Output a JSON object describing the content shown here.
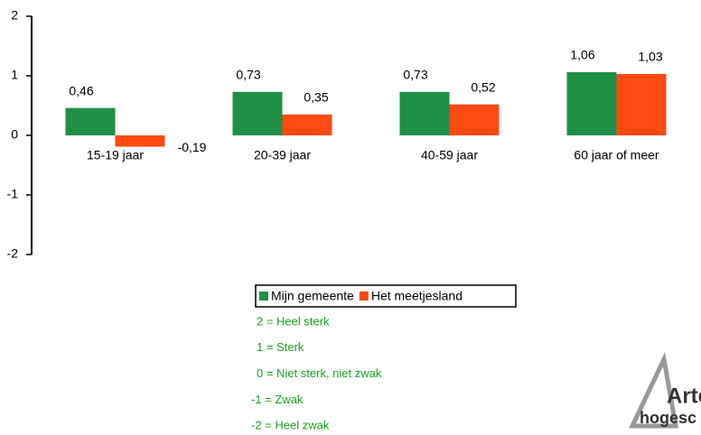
{
  "chart_data": {
    "type": "bar",
    "categories": [
      "15-19 jaar",
      "20-39 jaar",
      "40-59 jaar",
      "60 jaar of meer"
    ],
    "series": [
      {
        "name": "Mijn gemeente",
        "color": "#1f8f45",
        "values": [
          0.46,
          0.73,
          0.73,
          1.06
        ],
        "value_labels": [
          "0,46",
          "0,73",
          "0,73",
          "1,06"
        ]
      },
      {
        "name": "Het meetjesland",
        "color": "#ff4a12",
        "values": [
          -0.19,
          0.35,
          0.52,
          1.03
        ],
        "value_labels": [
          "-0,19",
          "0,35",
          "0,52",
          "1,03"
        ]
      }
    ],
    "ylim": [
      -2,
      2
    ],
    "yticks": [
      -2,
      -1,
      0,
      1,
      2
    ],
    "grid": false,
    "legend": "bottom",
    "annotations": [
      "2 = Heel sterk",
      "1 = Sterk",
      "0 = Niet sterk, niet zwak",
      "-1 = Zwak",
      "-2 = Heel zwak"
    ],
    "logo": [
      "Arte",
      "hogesc"
    ]
  }
}
